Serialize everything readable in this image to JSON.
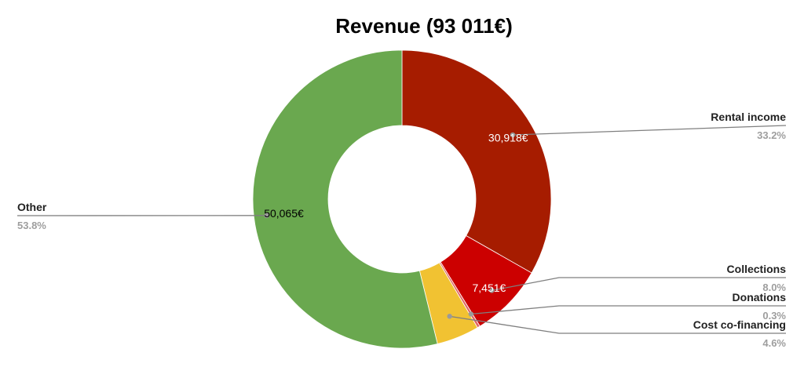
{
  "chart_data": {
    "type": "pie",
    "donut": true,
    "title": "Revenue (93 011€)",
    "slices": [
      {
        "name": "Rental income",
        "value": 30918,
        "value_label": "30,918€",
        "percent_label": "33.2%",
        "color": "#a61c00",
        "value_color": "#ffffff"
      },
      {
        "name": "Collections",
        "value": 7451,
        "value_label": "7,451€",
        "percent_label": "8.0%",
        "color": "#cc0000",
        "value_color": "#ffffff"
      },
      {
        "name": "Donations",
        "value": 279,
        "value_label": "",
        "percent_label": "0.3%",
        "color": "#e06666",
        "value_color": "#ffffff"
      },
      {
        "name": "Cost co-financing",
        "value": 4298,
        "value_label": "",
        "percent_label": "4.6%",
        "color": "#f1c232",
        "value_color": "#000000"
      },
      {
        "name": "Other",
        "value": 50065,
        "value_label": "50,065€",
        "percent_label": "53.8%",
        "color": "#6aa84f",
        "value_color": "#000000"
      }
    ],
    "legend": "none"
  }
}
